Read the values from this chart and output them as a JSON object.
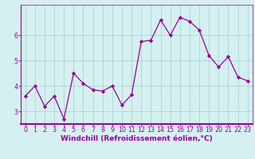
{
  "x": [
    0,
    1,
    2,
    3,
    4,
    5,
    6,
    7,
    8,
    9,
    10,
    11,
    12,
    13,
    14,
    15,
    16,
    17,
    18,
    19,
    20,
    21,
    22,
    23
  ],
  "y": [
    3.6,
    4.0,
    3.2,
    3.6,
    2.7,
    4.5,
    4.1,
    3.85,
    3.8,
    4.0,
    3.25,
    3.65,
    5.75,
    5.8,
    6.6,
    6.0,
    6.7,
    6.55,
    6.2,
    5.2,
    4.75,
    5.15,
    4.35,
    4.2
  ],
  "line_color": "#990099",
  "marker": "D",
  "marker_size": 2.2,
  "bg_color": "#d5f0f0",
  "grid_color": "#b0d8d8",
  "xlabel": "Windchill (Refroidissement éolien,°C)",
  "xlabel_fontsize": 6.5,
  "ylim": [
    2.5,
    7.2
  ],
  "yticks": [
    3,
    4,
    5,
    6
  ],
  "ytick_labels": [
    "3",
    "4",
    "5",
    "6"
  ],
  "xticks": [
    0,
    1,
    2,
    3,
    4,
    5,
    6,
    7,
    8,
    9,
    10,
    11,
    12,
    13,
    14,
    15,
    16,
    17,
    18,
    19,
    20,
    21,
    22,
    23
  ],
  "tick_color": "#990099",
  "tick_fontsize": 5.8,
  "spine_color": "#990099",
  "axis_line_color": "#990099"
}
